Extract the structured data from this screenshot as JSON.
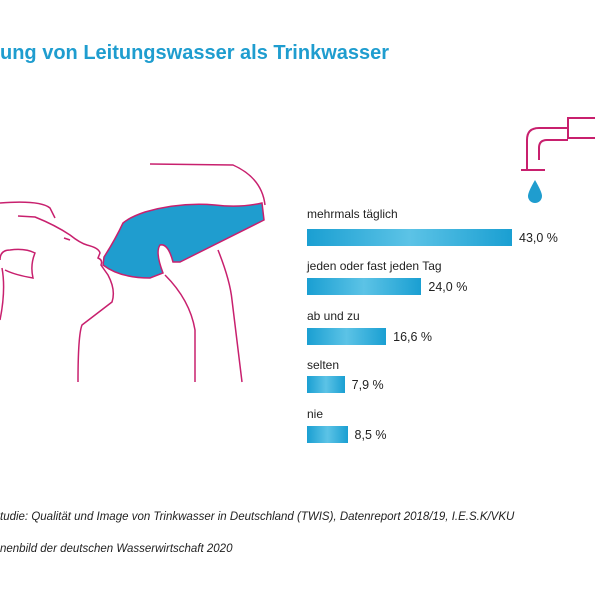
{
  "chart_data": {
    "type": "bar",
    "orientation": "horizontal",
    "title": "ung von Leitungswasser als Trinkwasser",
    "categories": [
      "mehrmals täglich",
      "jeden oder fast jeden Tag",
      "ab und zu",
      "selten",
      "nie"
    ],
    "values": [
      43.0,
      24.0,
      16.6,
      7.9,
      8.5
    ],
    "value_labels": [
      "43,0 %",
      "24,0 %",
      "16,6 %",
      "7,9 %",
      "8,5 %"
    ],
    "unit": "%",
    "xlim": [
      0,
      43
    ]
  },
  "footnotes": [
    "tudie: Qualität und Image von Trinkwasser in Deutschland (TWIS), Datenreport 2018/19, I.E.S.K/VKU",
    "nenbild der deutschen Wasserwirtschaft 2020"
  ],
  "colors": {
    "accent": "#1f9dcf",
    "line": "#c8206e"
  }
}
